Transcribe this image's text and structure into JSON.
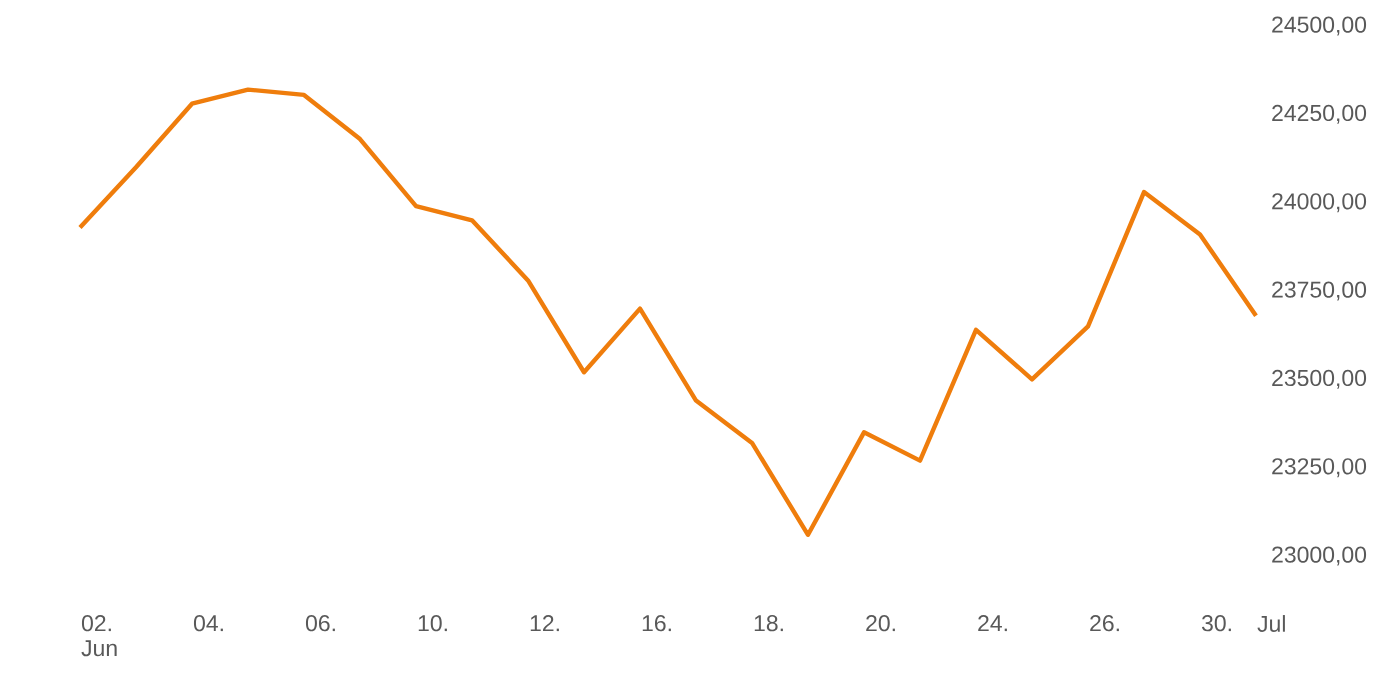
{
  "chart_data": {
    "type": "line",
    "categories": [
      "02. Jun",
      null,
      "04.",
      null,
      "06.",
      null,
      "10.",
      null,
      "12.",
      null,
      "16.",
      null,
      "18.",
      null,
      "20.",
      null,
      "24.",
      null,
      "26.",
      null,
      "30.",
      "Jul"
    ],
    "series": [
      {
        "color": "#ef7d0c",
        "values": [
          23930,
          24100,
          24280,
          24320,
          24305,
          24180,
          23990,
          23950,
          23780,
          23520,
          23700,
          23440,
          23320,
          23060,
          23350,
          23270,
          23640,
          23500,
          23650,
          24030,
          23910,
          23680
        ]
      }
    ],
    "ylim": [
      23000,
      24500
    ],
    "yticks": [
      {
        "value": 23000,
        "label": "23000,00"
      },
      {
        "value": 23250,
        "label": "23250,00"
      },
      {
        "value": 23500,
        "label": "23500,00"
      },
      {
        "value": 23750,
        "label": "23750,00"
      },
      {
        "value": 24000,
        "label": "24000,00"
      },
      {
        "value": 24250,
        "label": "24250,00"
      },
      {
        "value": 24500,
        "label": "24500,00"
      }
    ],
    "grid": false,
    "marker": "none",
    "line_style": "solid"
  }
}
